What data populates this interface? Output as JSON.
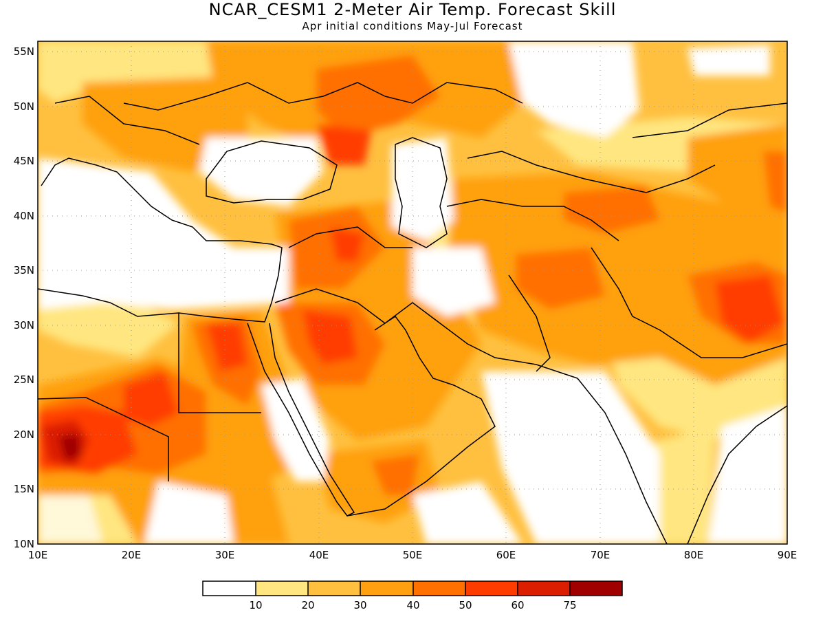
{
  "title": "NCAR_CESM1 2-Meter Air Temp. Forecast Skill",
  "subtitle": "Apr initial conditions  May-Jul Forecast",
  "map": {
    "lon_range": [
      10,
      90
    ],
    "lat_range": [
      10,
      56
    ],
    "lon_ticks": [
      "10E",
      "20E",
      "30E",
      "40E",
      "50E",
      "60E",
      "70E",
      "80E",
      "90E"
    ],
    "lat_ticks": [
      "10N",
      "15N",
      "20N",
      "25N",
      "30N",
      "35N",
      "40N",
      "45N",
      "50N",
      "55N"
    ]
  },
  "legend": {
    "colors": [
      "#ffffff",
      "#ffe680",
      "#ffc040",
      "#ffa010",
      "#ff7000",
      "#ff3c00",
      "#dc1e00",
      "#a00000"
    ],
    "labels": [
      "10",
      "20",
      "30",
      "40",
      "50",
      "60",
      "75"
    ]
  },
  "chart_data": {
    "type": "heatmap",
    "title": "NCAR_CESM1 2-Meter Air Temp. Forecast Skill",
    "subtitle": "Apr initial conditions  May-Jul Forecast",
    "xlim": [
      10,
      90
    ],
    "ylim": [
      10,
      56
    ],
    "x_ticks": [
      "10E",
      "20E",
      "30E",
      "40E",
      "50E",
      "60E",
      "70E",
      "80E",
      "90E"
    ],
    "y_ticks": [
      "10N",
      "15N",
      "20N",
      "25N",
      "30N",
      "35N",
      "40N",
      "45N",
      "50N",
      "55N"
    ],
    "color_levels": [
      10,
      20,
      30,
      40,
      50,
      60,
      75
    ],
    "colors": [
      "#ffffff",
      "#ffe680",
      "#ffc040",
      "#ffa010",
      "#ff7000",
      "#ff3c00",
      "#dc1e00",
      "#a00000"
    ],
    "grid": "dotted",
    "regions": [
      {
        "lon": [
          10,
          17,
          23,
          23,
          10
        ],
        "lat": [
          23,
          25,
          21,
          17,
          15
        ],
        "level": "50-60"
      },
      {
        "lon": [
          12,
          15,
          17,
          14,
          12
        ],
        "lat": [
          21,
          22,
          20,
          18,
          19
        ],
        "level": "60-75"
      },
      {
        "lon": [
          28,
          33,
          34,
          30,
          28
        ],
        "lat": [
          30,
          29,
          24,
          24,
          27
        ],
        "level": "50-60"
      },
      {
        "lon": [
          40,
          45,
          47,
          43,
          40
        ],
        "lat": [
          30,
          31,
          27,
          24,
          25
        ],
        "level": "50-60"
      },
      {
        "lon": [
          83,
          90,
          90,
          85,
          83
        ],
        "lat": [
          34,
          35,
          29,
          28,
          31
        ],
        "level": "50-60"
      },
      {
        "lon": [
          86,
          90,
          90,
          87
        ],
        "lat": [
          45,
          46,
          39,
          40
        ],
        "level": "50-60"
      },
      {
        "lon": [
          46,
          50,
          52,
          48,
          46
        ],
        "lat": [
          57,
          57,
          54,
          51,
          52
        ],
        "level": "40-50"
      },
      {
        "lon": [
          62,
          68,
          68,
          62
        ],
        "lat": [
          36,
          37,
          33,
          33
        ],
        "level": "40-50"
      },
      {
        "lon": [
          73,
          79,
          79,
          74
        ],
        "lat": [
          44,
          44,
          39,
          40
        ],
        "level": "40-50"
      },
      {
        "lon": [
          53,
          62,
          64,
          60,
          54
        ],
        "lat": [
          56,
          55,
          51,
          48,
          50
        ],
        "level": "white"
      },
      {
        "lon": [
          62,
          72,
          75,
          68,
          64
        ],
        "lat": [
          55,
          56,
          50,
          49,
          52
        ],
        "level": "white"
      },
      {
        "lon": [
          26,
          42,
          42,
          32,
          26
        ],
        "lat": [
          46,
          47,
          41,
          40,
          42
        ],
        "level": "white"
      },
      {
        "lon": [
          10,
          36,
          36,
          30,
          20,
          10
        ],
        "lat": [
          41,
          38,
          31,
          31,
          32,
          34
        ],
        "level": "white"
      },
      {
        "lon": [
          63,
          71,
          72,
          67,
          62
        ],
        "lat": [
          24,
          25,
          10,
          10,
          20
        ],
        "level": "white"
      },
      {
        "lon": [
          80,
          90,
          90,
          84,
          80
        ],
        "lat": [
          20,
          21,
          10,
          10,
          12
        ],
        "level": "white"
      },
      {
        "lon": [
          47,
          55,
          58,
          54,
          48
        ],
        "lat": [
          44,
          47,
          42,
          37,
          38
        ],
        "level": "white"
      }
    ]
  }
}
